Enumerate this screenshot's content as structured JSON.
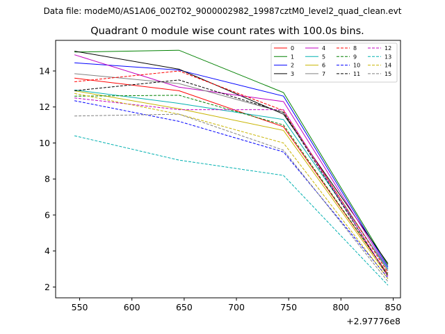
{
  "suptitle": "Data file: modeM0/AS1A06_002T02_9000002982_19987cztM0_level2_quad_clean.evt",
  "chart_data": {
    "type": "line",
    "title": "Quadrant 0 module wise count rates with 100.0s bins.",
    "xlabel": "",
    "ylabel": "",
    "x_offset_label": "+2.97776e8",
    "x": [
      545,
      645,
      745,
      845
    ],
    "xlim": [
      527,
      857
    ],
    "ylim": [
      1.4,
      15.7
    ],
    "x_ticks": [
      550,
      600,
      650,
      700,
      750,
      800,
      850
    ],
    "y_ticks": [
      2,
      4,
      6,
      8,
      10,
      12,
      14
    ],
    "legend_position": "top-right",
    "legend_columns": 4,
    "series": [
      {
        "name": "0",
        "color": "#ff0000",
        "dash": "solid",
        "values": [
          13.6,
          12.9,
          10.9,
          2.7
        ]
      },
      {
        "name": "1",
        "color": "#008000",
        "dash": "solid",
        "values": [
          15.05,
          15.15,
          12.8,
          3.2
        ]
      },
      {
        "name": "2",
        "color": "#0000ff",
        "dash": "solid",
        "values": [
          14.45,
          14.05,
          12.6,
          3.1
        ]
      },
      {
        "name": "3",
        "color": "#000000",
        "dash": "solid",
        "values": [
          15.1,
          14.1,
          11.6,
          3.3
        ]
      },
      {
        "name": "4",
        "color": "#c000c0",
        "dash": "solid",
        "values": [
          14.9,
          13.1,
          12.3,
          3.0
        ]
      },
      {
        "name": "5",
        "color": "#00b0b0",
        "dash": "solid",
        "values": [
          12.95,
          12.2,
          11.3,
          3.0
        ]
      },
      {
        "name": "6",
        "color": "#c8b400",
        "dash": "solid",
        "values": [
          12.9,
          11.9,
          10.7,
          2.6
        ]
      },
      {
        "name": "7",
        "color": "#808080",
        "dash": "solid",
        "values": [
          13.85,
          13.3,
          11.7,
          2.9
        ]
      },
      {
        "name": "8",
        "color": "#ff0000",
        "dash": "dashed",
        "values": [
          13.4,
          14.0,
          11.8,
          2.8
        ]
      },
      {
        "name": "9",
        "color": "#008000",
        "dash": "dashed",
        "values": [
          12.6,
          12.65,
          11.0,
          2.7
        ]
      },
      {
        "name": "10",
        "color": "#0000ff",
        "dash": "dashed",
        "values": [
          12.35,
          11.2,
          9.5,
          2.5
        ]
      },
      {
        "name": "11",
        "color": "#000000",
        "dash": "dashed",
        "values": [
          12.9,
          13.5,
          11.7,
          2.6
        ]
      },
      {
        "name": "12",
        "color": "#c000c0",
        "dash": "dashed",
        "values": [
          12.5,
          11.85,
          11.85,
          2.6
        ]
      },
      {
        "name": "13",
        "color": "#00b0b0",
        "dash": "dashed",
        "values": [
          10.4,
          9.05,
          8.2,
          2.1
        ]
      },
      {
        "name": "14",
        "color": "#c8b400",
        "dash": "dashed",
        "values": [
          12.75,
          11.6,
          10.0,
          2.45
        ]
      },
      {
        "name": "15",
        "color": "#808080",
        "dash": "dashed",
        "values": [
          11.5,
          11.6,
          9.6,
          2.3
        ]
      }
    ]
  }
}
